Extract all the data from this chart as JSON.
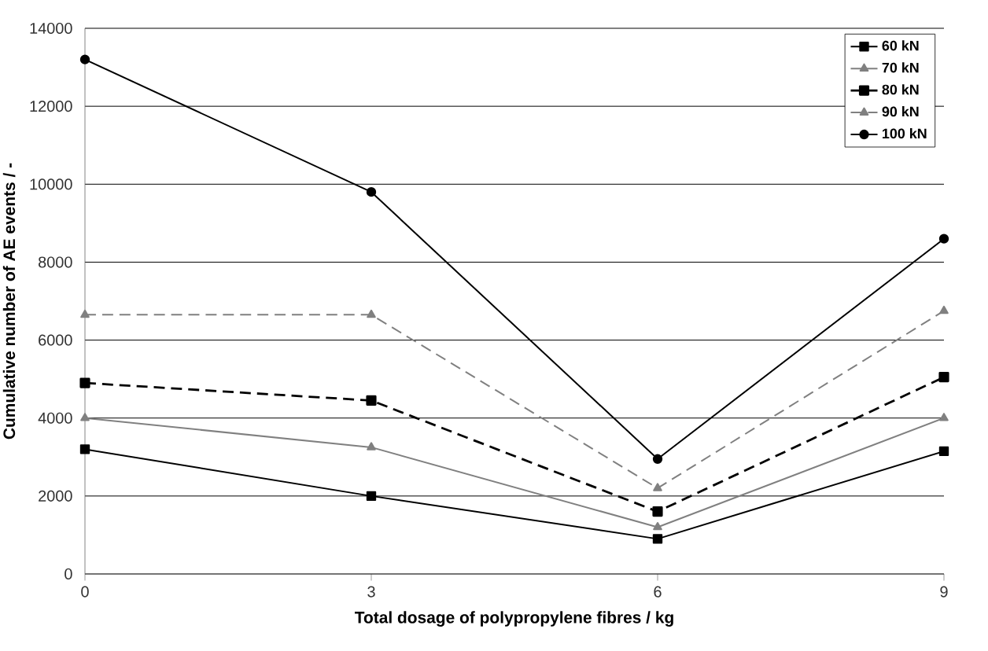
{
  "chart_data": {
    "type": "line",
    "xlabel": "Total dosage of polypropylene fibres / kg",
    "ylabel": "Cumulative number of AE events / -",
    "x": [
      0,
      3,
      6,
      9
    ],
    "xlim": [
      0,
      9
    ],
    "xticks": [
      0,
      3,
      6,
      9
    ],
    "ylim": [
      0,
      14000
    ],
    "yticks": [
      0,
      2000,
      4000,
      6000,
      8000,
      10000,
      12000,
      14000
    ],
    "grid": "y",
    "legend": "top right",
    "series": [
      {
        "name": "60 kN",
        "color": "#000000",
        "marker": "square",
        "line_style": "solid",
        "values": [
          3200,
          2000,
          900,
          3150
        ]
      },
      {
        "name": "70 kN",
        "color": "#808080",
        "marker": "triangle",
        "line_style": "solid",
        "values": [
          4000,
          3250,
          1200,
          4000
        ]
      },
      {
        "name": "80 kN",
        "color": "#000000",
        "marker": "square",
        "line_style": "dashed",
        "values": [
          4900,
          4450,
          1600,
          5050
        ]
      },
      {
        "name": "90 kN",
        "color": "#808080",
        "marker": "triangle",
        "line_style": "dashed",
        "values": [
          6650,
          6650,
          2200,
          6750
        ]
      },
      {
        "name": "100 kN",
        "color": "#000000",
        "marker": "circle",
        "line_style": "solid",
        "values": [
          13200,
          9800,
          2950,
          8600
        ]
      }
    ]
  }
}
